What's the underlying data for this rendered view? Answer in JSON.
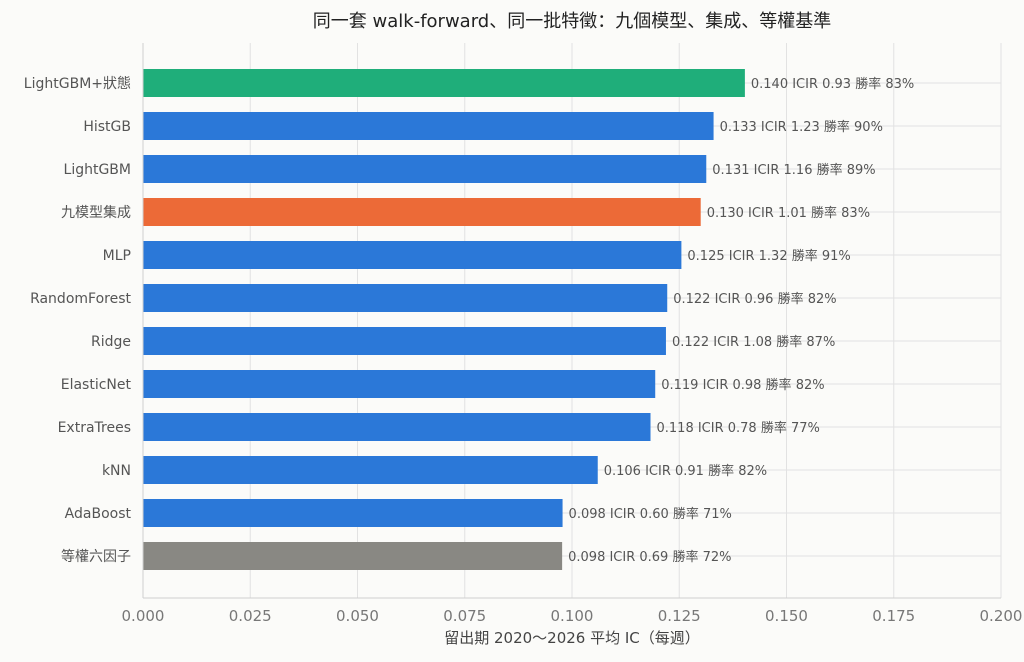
{
  "chart_data": {
    "type": "bar",
    "orientation": "horizontal",
    "title": "同一套 walk-forward、同一批特徵：九個模型、集成、等權基準",
    "xlabel": "留出期 2020～2026 平均 IC（每週）",
    "ylabel": "",
    "xlim": [
      0,
      0.2
    ],
    "xticks": [
      "0.000",
      "0.025",
      "0.050",
      "0.075",
      "0.100",
      "0.125",
      "0.150",
      "0.175",
      "0.200"
    ],
    "grid": true,
    "categories": [
      "LightGBM+狀態",
      "HistGB",
      "LightGBM",
      "九模型集成",
      "MLP",
      "RandomForest",
      "Ridge",
      "ElasticNet",
      "ExtraTrees",
      "kNN",
      "AdaBoost",
      "等權六因子"
    ],
    "values": [
      0.1403,
      0.133,
      0.1313,
      0.13,
      0.1255,
      0.1222,
      0.1219,
      0.1194,
      0.1183,
      0.106,
      0.0978,
      0.0977
    ],
    "data_labels": [
      "0.140 ICIR 0.93 勝率 83%",
      "0.133 ICIR 1.23 勝率 90%",
      "0.131 ICIR 1.16 勝率 89%",
      "0.130 ICIR 1.01 勝率 83%",
      "0.125 ICIR 1.32 勝率 91%",
      "0.122 ICIR 0.96 勝率 82%",
      "0.122 ICIR 1.08 勝率 87%",
      "0.119 ICIR 0.98 勝率 82%",
      "0.118 ICIR 0.78 勝率 77%",
      "0.106 ICIR 0.91 勝率 82%",
      "0.098 ICIR 0.60 勝率 71%",
      "0.098 ICIR 0.69 勝率 72%"
    ],
    "colors": [
      "#1fae7a",
      "#2b78d8",
      "#2b78d8",
      "#ec6a37",
      "#2b78d8",
      "#2b78d8",
      "#2b78d8",
      "#2b78d8",
      "#2b78d8",
      "#2b78d8",
      "#2b78d8",
      "#898883"
    ]
  }
}
